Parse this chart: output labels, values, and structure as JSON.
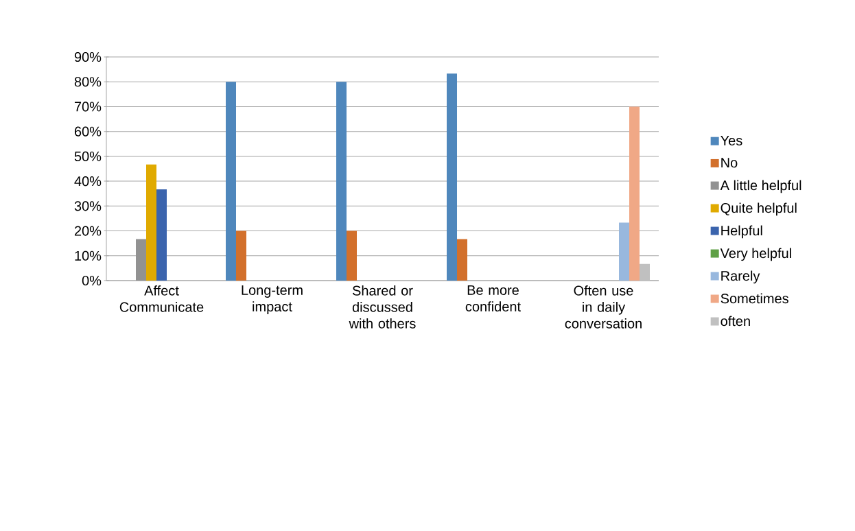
{
  "chart_data": {
    "type": "bar",
    "categories": [
      "Affect Communicate",
      "Long-term impact",
      "Shared or discussed with others",
      "Be more confident",
      "Often use in daily conversation"
    ],
    "series": [
      {
        "name": "Yes",
        "color": "#4f87bc",
        "values": [
          null,
          80,
          80,
          83.3,
          null
        ]
      },
      {
        "name": "No",
        "color": "#d2702c",
        "values": [
          null,
          20,
          20,
          16.7,
          null
        ]
      },
      {
        "name": "A little helpful",
        "color": "#929292",
        "values": [
          16.7,
          null,
          null,
          null,
          null
        ]
      },
      {
        "name": "Quite helpful",
        "color": "#e0aa00",
        "values": [
          46.7,
          null,
          null,
          null,
          null
        ]
      },
      {
        "name": "Helpful",
        "color": "#3b64ad",
        "values": [
          36.7,
          null,
          null,
          null,
          null
        ]
      },
      {
        "name": "Very helpful",
        "color": "#5fa046",
        "values": [
          null,
          null,
          null,
          null,
          null
        ]
      },
      {
        "name": "Rarely",
        "color": "#98b8de",
        "values": [
          null,
          null,
          null,
          null,
          23.3
        ]
      },
      {
        "name": "Sometimes",
        "color": "#f0a886",
        "values": [
          null,
          null,
          null,
          null,
          70
        ]
      },
      {
        "name": "often",
        "color": "#c0c0c0",
        "values": [
          null,
          null,
          null,
          null,
          6.7
        ]
      }
    ],
    "ylim": [
      0,
      90
    ],
    "yticks": [
      {
        "value": 0,
        "label": "0%"
      },
      {
        "value": 10,
        "label": "10%"
      },
      {
        "value": 20,
        "label": "20%"
      },
      {
        "value": 30,
        "label": "30%"
      },
      {
        "value": 40,
        "label": "40%"
      },
      {
        "value": 50,
        "label": "50%"
      },
      {
        "value": 60,
        "label": "60%"
      },
      {
        "value": 70,
        "label": "70%"
      },
      {
        "value": 80,
        "label": "80%"
      },
      {
        "value": 90,
        "label": "90%"
      }
    ],
    "grid": "y",
    "legend": "right"
  }
}
